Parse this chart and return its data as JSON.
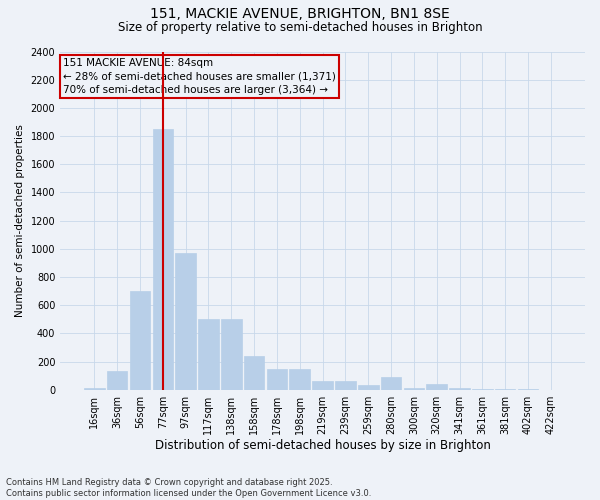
{
  "title1": "151, MACKIE AVENUE, BRIGHTON, BN1 8SE",
  "title2": "Size of property relative to semi-detached houses in Brighton",
  "xlabel": "Distribution of semi-detached houses by size in Brighton",
  "ylabel": "Number of semi-detached properties",
  "categories": [
    "16sqm",
    "36sqm",
    "56sqm",
    "77sqm",
    "97sqm",
    "117sqm",
    "138sqm",
    "158sqm",
    "178sqm",
    "198sqm",
    "219sqm",
    "239sqm",
    "259sqm",
    "280sqm",
    "300sqm",
    "320sqm",
    "341sqm",
    "361sqm",
    "381sqm",
    "402sqm",
    "422sqm"
  ],
  "values": [
    10,
    130,
    700,
    1850,
    970,
    500,
    500,
    240,
    150,
    150,
    60,
    60,
    35,
    90,
    15,
    40,
    10,
    5,
    5,
    2,
    0
  ],
  "bar_color": "#b8cfe8",
  "bar_edge_color": "#b8cfe8",
  "grid_color": "#c8d8ea",
  "background_color": "#eef2f8",
  "vline_x_pos": 3.0,
  "vline_color": "#cc0000",
  "ann_line1": "151 MACKIE AVENUE: 84sqm",
  "ann_line2": "← 28% of semi-detached houses are smaller (1,371)",
  "ann_line3": "70% of semi-detached houses are larger (3,364) →",
  "box_edge_color": "#cc0000",
  "ylim": [
    0,
    2400
  ],
  "yticks": [
    0,
    200,
    400,
    600,
    800,
    1000,
    1200,
    1400,
    1600,
    1800,
    2000,
    2200,
    2400
  ],
  "footnote_line1": "Contains HM Land Registry data © Crown copyright and database right 2025.",
  "footnote_line2": "Contains public sector information licensed under the Open Government Licence v3.0.",
  "title1_fontsize": 10,
  "title2_fontsize": 8.5,
  "xlabel_fontsize": 8.5,
  "ylabel_fontsize": 7.5,
  "tick_fontsize": 7,
  "ann_fontsize": 7.5,
  "footnote_fontsize": 6
}
